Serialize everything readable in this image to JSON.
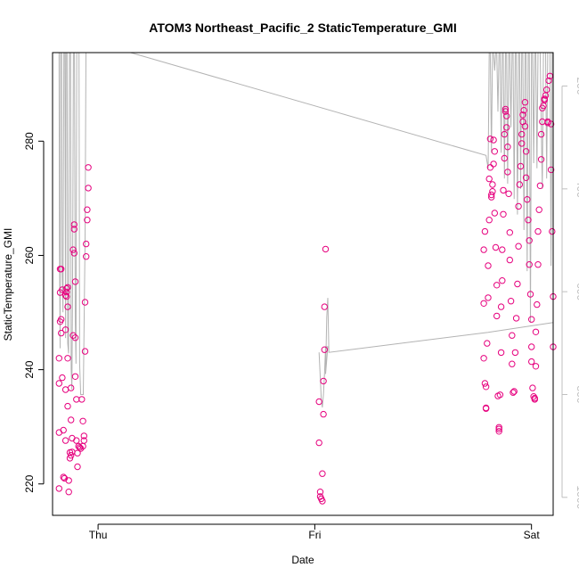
{
  "chart_data": {
    "type": "scatter",
    "title": "ATOM3 Northeast_Pacific_2 StaticTemperature_GMI",
    "xlabel": "Date",
    "ylabel": "StaticTemperature_GMI",
    "x_tick_labels": [
      "Thu",
      "Fri",
      "Sat"
    ],
    "x_tick_values": [
      1,
      2,
      3
    ],
    "xlim": [
      0.79,
      3.1
    ],
    "ylim": [
      214.5,
      295.5
    ],
    "y_ticks": [
      220,
      240,
      260,
      280
    ],
    "y2_ticks": [
      200,
      400,
      600,
      800,
      1000
    ],
    "y2_direction": "reversed",
    "y2_range": [
      135,
      1035
    ],
    "grid": false,
    "legend": "none",
    "colors": {
      "points": "#e6007e",
      "line": "#b3b3b3",
      "axis": "#000000",
      "right_axis": "#bfbfbf"
    },
    "series": [
      {
        "style": "points",
        "points": [
          [
            0.82,
            219.2
          ],
          [
            0.82,
            229
          ],
          [
            0.82,
            237.6
          ],
          [
            0.82,
            242
          ],
          [
            0.825,
            248.4
          ],
          [
            0.825,
            253.5
          ],
          [
            0.825,
            257.6
          ],
          [
            0.83,
            257.6
          ],
          [
            0.83,
            248.8
          ],
          [
            0.83,
            246.4
          ],
          [
            0.835,
            254
          ],
          [
            0.835,
            238.6
          ],
          [
            0.84,
            221.2
          ],
          [
            0.84,
            229.4
          ],
          [
            0.845,
            221
          ],
          [
            0.85,
            236.5
          ],
          [
            0.85,
            227.6
          ],
          [
            0.85,
            247
          ],
          [
            0.85,
            253
          ],
          [
            0.855,
            254.2
          ],
          [
            0.855,
            253.6
          ],
          [
            0.855,
            252.8
          ],
          [
            0.86,
            251
          ],
          [
            0.86,
            254.4
          ],
          [
            0.86,
            242
          ],
          [
            0.86,
            233.6
          ],
          [
            0.865,
            220.6
          ],
          [
            0.865,
            218.6
          ],
          [
            0.87,
            224.5
          ],
          [
            0.87,
            225.5
          ],
          [
            0.875,
            236.8
          ],
          [
            0.875,
            231.2
          ],
          [
            0.875,
            225
          ],
          [
            0.88,
            225.6
          ],
          [
            0.88,
            228
          ],
          [
            0.885,
            246
          ],
          [
            0.885,
            261
          ],
          [
            0.89,
            264.6
          ],
          [
            0.89,
            265.4
          ],
          [
            0.89,
            260.4
          ],
          [
            0.895,
            255.4
          ],
          [
            0.895,
            245.6
          ],
          [
            0.895,
            238.8
          ],
          [
            0.9,
            234.8
          ],
          [
            0.9,
            227.6
          ],
          [
            0.905,
            223
          ],
          [
            0.905,
            225.4
          ],
          [
            0.91,
            226.6
          ],
          [
            0.915,
            226.4
          ],
          [
            0.92,
            226.2
          ],
          [
            0.925,
            234.8
          ],
          [
            0.93,
            231
          ],
          [
            0.93,
            226.6
          ],
          [
            0.935,
            227.6
          ],
          [
            0.935,
            228.4
          ],
          [
            0.94,
            243.2
          ],
          [
            0.94,
            251.8
          ],
          [
            0.945,
            259.8
          ],
          [
            0.945,
            262
          ],
          [
            0.95,
            266.2
          ],
          [
            0.95,
            268
          ],
          [
            0.955,
            271.8
          ],
          [
            0.955,
            275.4
          ],
          [
            2.02,
            234.4
          ],
          [
            2.02,
            227.2
          ],
          [
            2.025,
            218.6
          ],
          [
            2.025,
            217.8
          ],
          [
            2.03,
            217.4
          ],
          [
            2.035,
            217
          ],
          [
            2.035,
            221.8
          ],
          [
            2.04,
            232.2
          ],
          [
            2.04,
            238
          ],
          [
            2.045,
            243.5
          ],
          [
            2.045,
            251
          ],
          [
            2.05,
            261.1
          ],
          [
            2.78,
            242
          ],
          [
            2.78,
            251.6
          ],
          [
            2.78,
            261
          ],
          [
            2.785,
            264.2
          ],
          [
            2.785,
            237.6
          ],
          [
            2.79,
            237
          ],
          [
            2.79,
            233.2
          ],
          [
            2.79,
            233.3
          ],
          [
            2.795,
            244.6
          ],
          [
            2.8,
            252.6
          ],
          [
            2.8,
            258.2
          ],
          [
            2.805,
            266.2
          ],
          [
            2.805,
            273.4
          ],
          [
            2.81,
            280.4
          ],
          [
            2.81,
            275.4
          ],
          [
            2.815,
            270.2
          ],
          [
            2.815,
            270.6
          ],
          [
            2.82,
            271.2
          ],
          [
            2.82,
            272.4
          ],
          [
            2.825,
            276
          ],
          [
            2.825,
            280.2
          ],
          [
            2.83,
            278.2
          ],
          [
            2.83,
            267.4
          ],
          [
            2.835,
            261.4
          ],
          [
            2.84,
            254.8
          ],
          [
            2.84,
            249.4
          ],
          [
            2.845,
            235.4
          ],
          [
            2.85,
            229.2
          ],
          [
            2.85,
            229.6
          ],
          [
            2.85,
            229.9
          ],
          [
            2.855,
            235.6
          ],
          [
            2.86,
            243
          ],
          [
            2.86,
            251
          ],
          [
            2.865,
            255.6
          ],
          [
            2.865,
            261
          ],
          [
            2.87,
            267.2
          ],
          [
            2.87,
            271.4
          ],
          [
            2.875,
            277
          ],
          [
            2.875,
            281.2
          ],
          [
            2.88,
            285.6
          ],
          [
            2.88,
            285.2
          ],
          [
            2.885,
            284.4
          ],
          [
            2.885,
            282.4
          ],
          [
            2.89,
            279
          ],
          [
            2.89,
            274.6
          ],
          [
            2.895,
            270.8
          ],
          [
            2.9,
            264
          ],
          [
            2.9,
            259.2
          ],
          [
            2.905,
            252
          ],
          [
            2.91,
            246
          ],
          [
            2.91,
            241
          ],
          [
            2.915,
            236
          ],
          [
            2.92,
            236.2
          ],
          [
            2.925,
            243
          ],
          [
            2.93,
            249
          ],
          [
            2.935,
            255
          ],
          [
            2.94,
            261.6
          ],
          [
            2.94,
            268.6
          ],
          [
            2.945,
            272.4
          ],
          [
            2.95,
            275.6
          ],
          [
            2.955,
            279.6
          ],
          [
            2.955,
            281.2
          ],
          [
            2.96,
            283.4
          ],
          [
            2.96,
            284.6
          ],
          [
            2.965,
            285.4
          ],
          [
            2.97,
            286.8
          ],
          [
            2.97,
            282.6
          ],
          [
            2.975,
            278.2
          ],
          [
            2.975,
            273.6
          ],
          [
            2.98,
            269.8
          ],
          [
            2.985,
            266.2
          ],
          [
            2.99,
            262.6
          ],
          [
            2.99,
            258.4
          ],
          [
            2.995,
            253.2
          ],
          [
            3.0,
            248.8
          ],
          [
            3.0,
            244
          ],
          [
            3.0,
            241.4
          ],
          [
            3.005,
            236.8
          ],
          [
            3.01,
            235.3
          ],
          [
            3.015,
            235
          ],
          [
            3.015,
            234.8
          ],
          [
            3.02,
            240.6
          ],
          [
            3.02,
            246.6
          ],
          [
            3.025,
            251.4
          ],
          [
            3.03,
            258.4
          ],
          [
            3.03,
            264.2
          ],
          [
            3.035,
            268
          ],
          [
            3.04,
            272.2
          ],
          [
            3.045,
            276.8
          ],
          [
            3.045,
            281.2
          ],
          [
            3.05,
            283.4
          ],
          [
            3.05,
            285.8
          ],
          [
            3.055,
            286.2
          ],
          [
            3.06,
            287.2
          ],
          [
            3.06,
            287.4
          ],
          [
            3.065,
            288
          ],
          [
            3.07,
            289
          ],
          [
            3.075,
            283.4
          ],
          [
            3.075,
            283.2
          ],
          [
            3.08,
            290.6
          ],
          [
            3.085,
            291.4
          ],
          [
            3.09,
            283
          ],
          [
            3.09,
            275
          ],
          [
            3.095,
            264.2
          ],
          [
            3.1,
            252.8
          ],
          [
            3.1,
            244
          ]
        ]
      },
      {
        "style": "line",
        "axis": "right",
        "points": [
          [
            0.82,
            135
          ],
          [
            0.822,
            520
          ],
          [
            0.825,
            710
          ],
          [
            0.827,
            135
          ],
          [
            0.832,
            135
          ],
          [
            0.834,
            560
          ],
          [
            0.838,
            640
          ],
          [
            0.842,
            135
          ],
          [
            0.847,
            135
          ],
          [
            0.85,
            690
          ],
          [
            0.852,
            135
          ],
          [
            0.857,
            135
          ],
          [
            0.86,
            700
          ],
          [
            0.864,
            720
          ],
          [
            0.868,
            135
          ],
          [
            0.873,
            135
          ],
          [
            0.876,
            750
          ],
          [
            0.879,
            790
          ],
          [
            0.882,
            620
          ],
          [
            0.886,
            135
          ],
          [
            0.891,
            135
          ],
          [
            0.895,
            660
          ],
          [
            0.898,
            740
          ],
          [
            0.902,
            135
          ],
          [
            0.912,
            135
          ],
          [
            0.915,
            740
          ],
          [
            0.92,
            800
          ],
          [
            0.925,
            800
          ],
          [
            0.932,
            800
          ],
          [
            0.94,
            500
          ],
          [
            0.944,
            135
          ],
          [
            0.955,
            135
          ],
          [
            1.15,
            135
          ],
          [
            2.79,
            335
          ],
          [
            2.8,
            360
          ],
          [
            2.805,
            135
          ],
          [
            2.81,
            135
          ],
          [
            2.815,
            330
          ],
          [
            2.82,
            135
          ],
          [
            2.825,
            135
          ],
          [
            2.83,
            170
          ],
          [
            2.835,
            135
          ],
          [
            2.84,
            135
          ],
          [
            2.845,
            250
          ],
          [
            2.85,
            135
          ],
          [
            2.855,
            135
          ],
          [
            2.86,
            330
          ],
          [
            2.865,
            135
          ],
          [
            2.87,
            135
          ],
          [
            2.875,
            380
          ],
          [
            2.88,
            135
          ],
          [
            2.885,
            135
          ],
          [
            2.89,
            390
          ],
          [
            2.895,
            135
          ],
          [
            2.9,
            135
          ],
          [
            2.905,
            280
          ],
          [
            2.91,
            135
          ],
          [
            2.915,
            135
          ],
          [
            2.92,
            420
          ],
          [
            2.925,
            135
          ],
          [
            2.93,
            135
          ],
          [
            2.935,
            450
          ],
          [
            2.94,
            135
          ],
          [
            2.945,
            135
          ],
          [
            2.95,
            400
          ],
          [
            2.955,
            135
          ],
          [
            2.96,
            135
          ],
          [
            2.965,
            480
          ],
          [
            2.97,
            135
          ],
          [
            2.975,
            135
          ],
          [
            2.98,
            560
          ],
          [
            2.985,
            135
          ],
          [
            2.99,
            135
          ],
          [
            2.995,
            660
          ],
          [
            3.0,
            135
          ],
          [
            3.005,
            135
          ],
          [
            3.01,
            350
          ],
          [
            3.015,
            135
          ],
          [
            3.02,
            135
          ],
          [
            3.025,
            360
          ],
          [
            3.03,
            135
          ],
          [
            3.04,
            135
          ],
          [
            3.05,
            400
          ],
          [
            3.055,
            135
          ],
          [
            3.065,
            135
          ],
          [
            3.07,
            380
          ],
          [
            3.075,
            135
          ],
          [
            3.085,
            135
          ],
          [
            3.09,
            550
          ],
          [
            3.095,
            135
          ]
        ]
      },
      {
        "style": "line",
        "axis": "right",
        "points": [
          [
            2.02,
            718
          ],
          [
            2.03,
            810
          ],
          [
            2.035,
            825
          ],
          [
            2.04,
            800
          ],
          [
            2.045,
            760
          ],
          [
            2.05,
            707
          ],
          [
            2.06,
            707
          ],
          [
            2.05,
            760
          ],
          [
            2.055,
            650
          ],
          [
            2.06,
            612
          ],
          [
            2.065,
            718
          ],
          [
            2.8,
            679
          ],
          [
            3.1,
            660
          ]
        ]
      }
    ]
  }
}
